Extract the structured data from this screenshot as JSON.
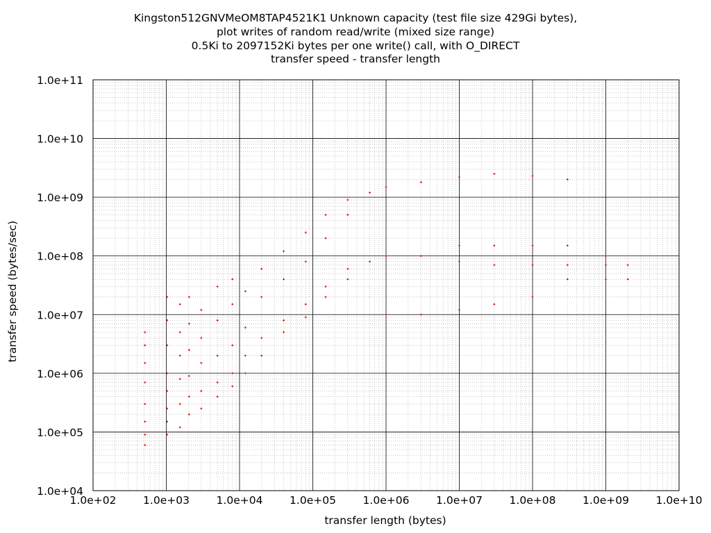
{
  "chart_data": {
    "type": "scatter",
    "title_lines": [
      "Kingston512GNVMeOM8TAP4521K1 Unknown capacity (test file size 429Gi bytes),",
      "plot writes of random read/write (mixed size range)",
      "0.5Ki to 2097152Ki bytes per one write() call, with O_DIRECT",
      "transfer speed - transfer length"
    ],
    "xlabel": "transfer length (bytes)",
    "ylabel": "transfer speed (bytes/sec)",
    "x_scale": "log",
    "y_scale": "log",
    "xlim": [
      100,
      10000000000
    ],
    "ylim": [
      10000,
      100000000000
    ],
    "x_ticks": [
      "1.0e+02",
      "1.0e+03",
      "1.0e+04",
      "1.0e+05",
      "1.0e+06",
      "1.0e+07",
      "1.0e+08",
      "1.0e+09",
      "1.0e+10"
    ],
    "y_ticks": [
      "1.0e+04",
      "1.0e+05",
      "1.0e+06",
      "1.0e+07",
      "1.0e+08",
      "1.0e+09",
      "1.0e+10",
      "1.0e+11"
    ],
    "grid": true,
    "point_color": "#e00000",
    "series": [
      {
        "points": [
          [
            512,
            60000
          ],
          [
            512,
            90000
          ],
          [
            512,
            150000
          ],
          [
            512,
            300000
          ],
          [
            512,
            700000
          ],
          [
            512,
            1500000
          ],
          [
            512,
            3000000
          ],
          [
            512,
            5000000
          ],
          [
            1024,
            90000
          ],
          [
            1024,
            150000
          ],
          [
            1024,
            250000
          ],
          [
            1024,
            500000
          ],
          [
            1024,
            1000000
          ],
          [
            1024,
            3000000
          ],
          [
            1024,
            8000000
          ],
          [
            1024,
            20000000
          ],
          [
            1536,
            120000
          ],
          [
            1536,
            300000
          ],
          [
            1536,
            800000
          ],
          [
            1536,
            2000000
          ],
          [
            1536,
            5000000
          ],
          [
            1536,
            15000000
          ],
          [
            2048,
            200000
          ],
          [
            2048,
            400000
          ],
          [
            2048,
            900000
          ],
          [
            2048,
            2500000
          ],
          [
            2048,
            7000000
          ],
          [
            2048,
            20000000
          ],
          [
            3000,
            250000
          ],
          [
            3000,
            500000
          ],
          [
            3000,
            1500000
          ],
          [
            3000,
            4000000
          ],
          [
            3000,
            12000000
          ],
          [
            5000,
            400000
          ],
          [
            5000,
            700000
          ],
          [
            5000,
            2000000
          ],
          [
            5000,
            8000000
          ],
          [
            5000,
            30000000
          ],
          [
            8000,
            600000
          ],
          [
            8000,
            1000000
          ],
          [
            8000,
            3000000
          ],
          [
            8000,
            15000000
          ],
          [
            8000,
            40000000
          ],
          [
            12000,
            1000000
          ],
          [
            12000,
            2000000
          ],
          [
            12000,
            6000000
          ],
          [
            12000,
            25000000
          ],
          [
            20000,
            2000000
          ],
          [
            20000,
            4000000
          ],
          [
            20000,
            20000000
          ],
          [
            20000,
            60000000
          ],
          [
            40000,
            5000000
          ],
          [
            40000,
            8000000
          ],
          [
            40000,
            40000000
          ],
          [
            40000,
            120000000
          ],
          [
            80000,
            9000000
          ],
          [
            80000,
            15000000
          ],
          [
            80000,
            80000000
          ],
          [
            80000,
            250000000
          ],
          [
            150000,
            20000000
          ],
          [
            150000,
            30000000
          ],
          [
            150000,
            200000000
          ],
          [
            150000,
            500000000
          ],
          [
            300000,
            40000000
          ],
          [
            300000,
            60000000
          ],
          [
            300000,
            500000000
          ],
          [
            300000,
            900000000
          ],
          [
            600000,
            80000000
          ],
          [
            600000,
            1200000000
          ],
          [
            1000000,
            100000000
          ],
          [
            1000000,
            1500000000
          ],
          [
            1000000,
            10000000
          ],
          [
            3000000,
            100000000
          ],
          [
            3000000,
            1800000000
          ],
          [
            3000000,
            10000000
          ],
          [
            10000000,
            80000000
          ],
          [
            10000000,
            150000000
          ],
          [
            10000000,
            2200000000
          ],
          [
            10000000,
            12000000
          ],
          [
            30000000,
            70000000
          ],
          [
            30000000,
            150000000
          ],
          [
            30000000,
            2500000000
          ],
          [
            30000000,
            15000000
          ],
          [
            100000000,
            70000000
          ],
          [
            100000000,
            150000000
          ],
          [
            100000000,
            2300000000
          ],
          [
            100000000,
            20000000
          ],
          [
            300000000,
            70000000
          ],
          [
            300000000,
            40000000
          ],
          [
            300000000,
            2000000000
          ],
          [
            300000000,
            150000000
          ],
          [
            1000000000,
            40000000
          ],
          [
            1000000000,
            70000000
          ],
          [
            1000000000,
            100000000
          ],
          [
            2000000000,
            40000000
          ],
          [
            2000000000,
            70000000
          ]
        ]
      }
    ]
  }
}
